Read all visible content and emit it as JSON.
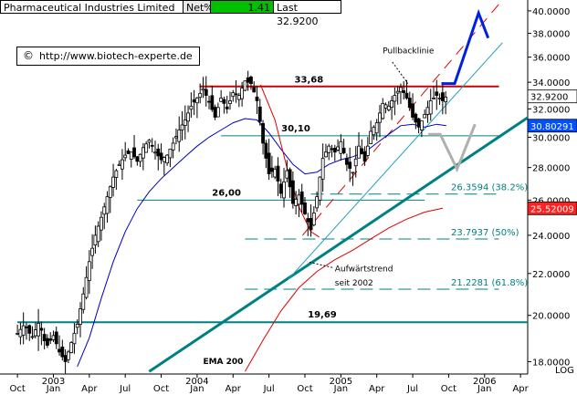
{
  "header": {
    "symbol": "Pharmaceutical Industries Limited",
    "net_label": "Net%",
    "net_value": "1.41",
    "last_label": "Last",
    "last_value": "32.9200"
  },
  "credit": {
    "symbol": "©",
    "url": "http://www.biotech-experte.de"
  },
  "colors": {
    "price": "#000000",
    "ema_blue": "#0000c0",
    "ema200_red": "#e00000",
    "teal": "#008080",
    "resistance": "#d00000",
    "forecast": "#0020e0",
    "badge_last": "#ffffff",
    "badge_blue": "#0050ff",
    "badge_red": "#ff2020"
  },
  "chart_data": {
    "type": "candlestick",
    "scale": "log",
    "ylim": [
      17.5,
      41.0
    ],
    "y_ticks": [
      18,
      20,
      22,
      24,
      26,
      28,
      30,
      32,
      34,
      36,
      38,
      40
    ],
    "y_tick_labels": [
      "18.0000",
      "20.0000",
      "22.0000",
      "24.0000",
      "26.0000",
      "28.0000",
      "30.0000",
      "32.0000",
      "34.0000",
      "36.0000",
      "38.0000",
      "40.0000"
    ],
    "y_axis_label": "LOG",
    "x_ticks": [
      {
        "m": 0,
        "label": "Oct"
      },
      {
        "m": 3,
        "label": "Jan"
      },
      {
        "m": 6,
        "label": "Apr"
      },
      {
        "m": 9,
        "label": "Jul"
      },
      {
        "m": 12,
        "label": "Oct"
      },
      {
        "m": 15,
        "label": "Jan"
      },
      {
        "m": 18,
        "label": "Apr"
      },
      {
        "m": 21,
        "label": "Jul"
      },
      {
        "m": 24,
        "label": "Oct"
      },
      {
        "m": 27,
        "label": "Jan"
      },
      {
        "m": 30,
        "label": "Apr"
      },
      {
        "m": 33,
        "label": "Jul"
      },
      {
        "m": 36,
        "label": "Oct"
      },
      {
        "m": 39,
        "label": "Jan"
      },
      {
        "m": 42,
        "label": "Apr"
      }
    ],
    "year_labels": [
      {
        "m": 3,
        "label": "2003"
      },
      {
        "m": 15,
        "label": "2004"
      },
      {
        "m": 27,
        "label": "2005"
      },
      {
        "m": 39,
        "label": "2006"
      }
    ],
    "price_path": [
      [
        0.0,
        19.2
      ],
      [
        0.6,
        19.6
      ],
      [
        1.2,
        19.0
      ],
      [
        1.8,
        19.7
      ],
      [
        2.4,
        18.6
      ],
      [
        3.0,
        19.1
      ],
      [
        3.5,
        18.4
      ],
      [
        4.0,
        18.0
      ],
      [
        4.5,
        18.8
      ],
      [
        5.0,
        19.6
      ],
      [
        5.5,
        21.0
      ],
      [
        6.0,
        22.6
      ],
      [
        6.5,
        24.0
      ],
      [
        7.0,
        25.0
      ],
      [
        7.5,
        26.2
      ],
      [
        8.0,
        27.4
      ],
      [
        8.5,
        28.2
      ],
      [
        9.0,
        28.8
      ],
      [
        9.5,
        29.0
      ],
      [
        10.0,
        28.4
      ],
      [
        10.5,
        29.3
      ],
      [
        11.0,
        29.8
      ],
      [
        11.5,
        29.0
      ],
      [
        12.0,
        28.5
      ],
      [
        12.5,
        28.8
      ],
      [
        13.0,
        29.6
      ],
      [
        13.5,
        30.5
      ],
      [
        14.0,
        31.2
      ],
      [
        14.5,
        32.2
      ],
      [
        15.0,
        32.8
      ],
      [
        15.5,
        33.5
      ],
      [
        16.0,
        32.5
      ],
      [
        16.5,
        31.4
      ],
      [
        17.0,
        32.8
      ],
      [
        17.5,
        32.0
      ],
      [
        18.0,
        33.2
      ],
      [
        18.5,
        33.0
      ],
      [
        19.0,
        34.1
      ],
      [
        19.5,
        33.9
      ],
      [
        20.0,
        32.6
      ],
      [
        20.5,
        29.6
      ],
      [
        21.0,
        27.6
      ],
      [
        21.5,
        27.9
      ],
      [
        22.0,
        26.4
      ],
      [
        22.5,
        27.8
      ],
      [
        23.0,
        25.8
      ],
      [
        23.5,
        26.3
      ],
      [
        24.0,
        25.2
      ],
      [
        24.5,
        24.3
      ],
      [
        25.0,
        26.2
      ],
      [
        25.5,
        28.6
      ],
      [
        26.0,
        29.4
      ],
      [
        26.5,
        29.0
      ],
      [
        27.0,
        29.7
      ],
      [
        27.5,
        28.2
      ],
      [
        28.0,
        27.7
      ],
      [
        28.5,
        29.4
      ],
      [
        29.0,
        28.4
      ],
      [
        29.5,
        30.4
      ],
      [
        30.0,
        31.0
      ],
      [
        30.5,
        32.4
      ],
      [
        31.0,
        32.2
      ],
      [
        31.5,
        33.0
      ],
      [
        32.0,
        33.6
      ],
      [
        32.5,
        32.8
      ],
      [
        33.0,
        31.4
      ],
      [
        33.5,
        30.7
      ],
      [
        34.0,
        31.6
      ],
      [
        34.5,
        32.6
      ],
      [
        35.0,
        33.0
      ],
      [
        35.5,
        32.6
      ],
      [
        35.8,
        32.92
      ]
    ],
    "overlays": {
      "ema_blue": [
        [
          5.0,
          17.8
        ],
        [
          6.0,
          19.0
        ],
        [
          7.0,
          20.8
        ],
        [
          8.0,
          22.6
        ],
        [
          9.0,
          24.2
        ],
        [
          10.0,
          25.5
        ],
        [
          11.0,
          26.5
        ],
        [
          12.0,
          27.3
        ],
        [
          13.0,
          28.0
        ],
        [
          14.0,
          28.7
        ],
        [
          15.0,
          29.4
        ],
        [
          16.0,
          30.0
        ],
        [
          17.0,
          30.5
        ],
        [
          18.0,
          31.0
        ],
        [
          19.0,
          31.3
        ],
        [
          20.0,
          31.2
        ],
        [
          21.0,
          30.3
        ],
        [
          22.0,
          29.2
        ],
        [
          23.0,
          28.2
        ],
        [
          24.0,
          27.6
        ],
        [
          25.0,
          27.7
        ],
        [
          26.0,
          28.2
        ],
        [
          27.0,
          28.5
        ],
        [
          28.0,
          28.7
        ],
        [
          29.0,
          29.0
        ],
        [
          30.0,
          29.6
        ],
        [
          31.0,
          30.2
        ],
        [
          32.0,
          30.8
        ],
        [
          33.0,
          30.9
        ],
        [
          34.0,
          30.7
        ],
        [
          35.0,
          30.9
        ],
        [
          35.8,
          30.8
        ]
      ],
      "ema200_red": [
        [
          19.0,
          17.6
        ],
        [
          20.5,
          18.9
        ],
        [
          22.0,
          20.2
        ],
        [
          23.5,
          21.3
        ],
        [
          25.0,
          22.1
        ],
        [
          26.5,
          22.7
        ],
        [
          28.0,
          23.2
        ],
        [
          29.5,
          23.8
        ],
        [
          31.0,
          24.4
        ],
        [
          32.5,
          24.9
        ],
        [
          34.0,
          25.3
        ],
        [
          35.5,
          25.52
        ]
      ],
      "ema_red_fast": [
        [
          20.3,
          33.8
        ],
        [
          21.5,
          31.2
        ],
        [
          22.5,
          28.0
        ],
        [
          23.5,
          25.6
        ],
        [
          24.5,
          24.2
        ],
        [
          25.2,
          23.9
        ]
      ],
      "trend_green": [
        [
          11.0,
          17.6
        ],
        [
          43.0,
          31.6
        ]
      ],
      "trend_thin_teal": [
        [
          22.6,
          21.7
        ],
        [
          40.5,
          37.2
        ]
      ],
      "trend_red_dashed": [
        [
          23.8,
          24.0
        ],
        [
          40.5,
          41.0
        ]
      ],
      "resistance": {
        "y": 33.68,
        "x": [
          15.2,
          40.2
        ],
        "label": "33,68"
      },
      "level_30": {
        "y": 30.1,
        "x": [
          17.0,
          40.2
        ],
        "label": "30,10"
      },
      "level_26": {
        "y": 26.0,
        "x": [
          10.0,
          34.0
        ],
        "label": "26,00"
      },
      "level_19": {
        "y": 19.69,
        "x": [
          0.0,
          43.0
        ],
        "label": "19,69"
      },
      "fib": [
        {
          "y": 26.3594,
          "x": [
            24.5,
            40.2
          ],
          "label": "26.3594 (38.2%)"
        },
        {
          "y": 23.7937,
          "x": [
            19.0,
            40.2
          ],
          "label": "23.7937 (50%)"
        },
        {
          "y": 21.2281,
          "x": [
            19.0,
            40.2
          ],
          "label": "21.2281 (61.8%)"
        }
      ],
      "forecast_up": [
        [
          35.4,
          33.9
        ],
        [
          36.5,
          33.9
        ],
        [
          38.5,
          39.8
        ],
        [
          39.3,
          37.6
        ]
      ],
      "forecast_v": [
        [
          34.3,
          30.2
        ],
        [
          35.3,
          30.2
        ],
        [
          36.7,
          27.9
        ],
        [
          38.2,
          30.9
        ]
      ]
    },
    "annotations": [
      {
        "text": "Pullbacklinie",
        "m": 30.5,
        "y": 36.3
      },
      {
        "text": "Aufwärtstrend",
        "m": 26.5,
        "y": 22.1
      },
      {
        "text": "seit 2002",
        "m": 26.5,
        "y": 21.4
      },
      {
        "text": "EMA 200",
        "m": 15.5,
        "y": 17.9
      }
    ],
    "badges": [
      {
        "value": "32.9200",
        "y": 32.92,
        "kind": "last"
      },
      {
        "value": "30.80291",
        "y": 30.8,
        "kind": "blue"
      },
      {
        "value": "25.52009",
        "y": 25.52,
        "kind": "red"
      }
    ]
  }
}
